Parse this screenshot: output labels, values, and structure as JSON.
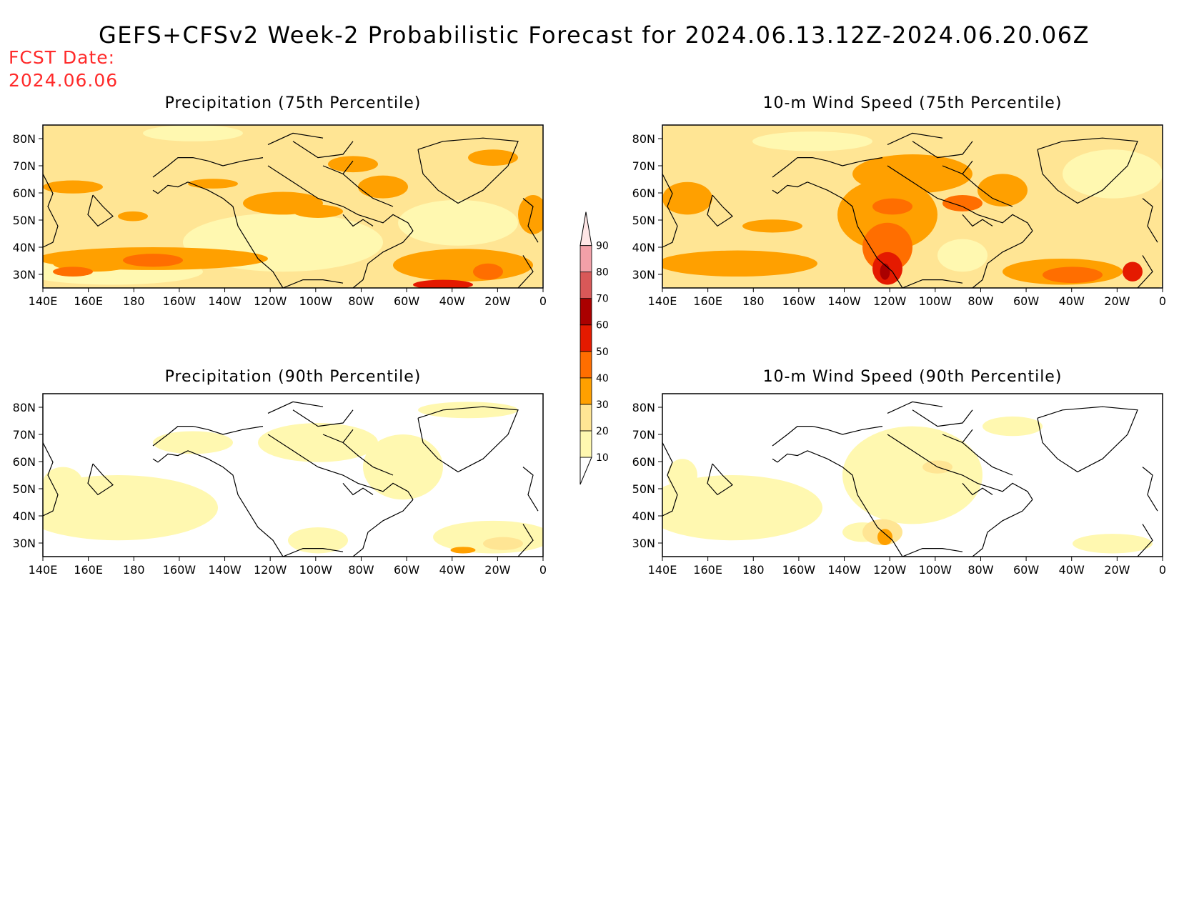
{
  "figure": {
    "title": "GEFS+CFSv2 Week-2 Probabilistic Forecast for 2024.06.13.12Z-2024.06.20.06Z",
    "fcst_label": "FCST Date:",
    "fcst_date": "2024.06.06"
  },
  "panels": [
    {
      "id": "precip75",
      "title": "Precipitation (75th Percentile)"
    },
    {
      "id": "wind75",
      "title": "10-m Wind Speed (75th Percentile)"
    },
    {
      "id": "precip90",
      "title": "Precipitation (90th Percentile)"
    },
    {
      "id": "wind90",
      "title": "10-m Wind Speed (90th Percentile)"
    }
  ],
  "axes": {
    "lon_labels": [
      "140E",
      "160E",
      "180",
      "160W",
      "140W",
      "120W",
      "100W",
      "80W",
      "60W",
      "40W",
      "20W",
      "0"
    ],
    "lat_labels": [
      "80N",
      "70N",
      "60N",
      "50N",
      "40N",
      "30N"
    ]
  },
  "legend": {
    "levels": [
      "10",
      "20",
      "30",
      "40",
      "50",
      "60",
      "70",
      "80",
      "90"
    ],
    "colors": [
      "#fff8b0",
      "#ffe594",
      "#ffa000",
      "#ff6e00",
      "#e41a00",
      "#aa0000",
      "#d85858",
      "#f2a0a8",
      "#ffe6e6"
    ]
  },
  "palette": {
    "c10": "#fff8b0",
    "c20": "#ffe594",
    "c30": "#ffa000",
    "c40": "#ff6e00",
    "c50": "#e41a00",
    "c60": "#aa0000",
    "fcst": "#ff2a2a"
  }
}
